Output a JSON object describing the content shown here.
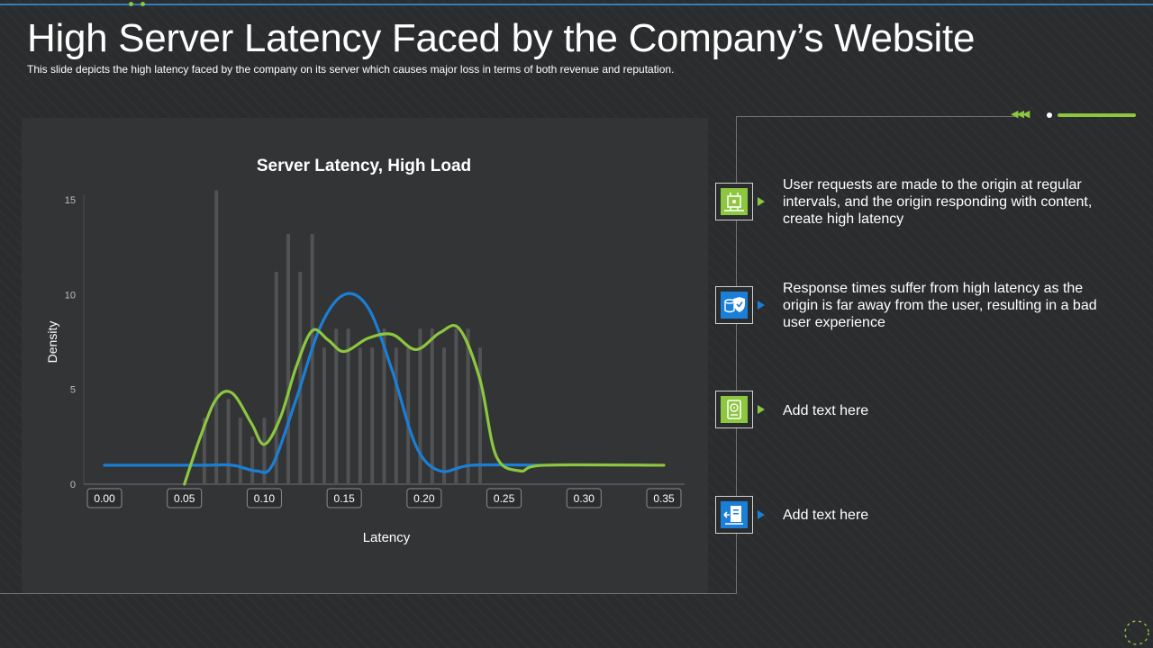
{
  "slide": {
    "title": "High Server Latency Faced by the Company’s Website",
    "subtitle": "This slide depicts the high latency faced by the company on its server  which causes major loss in terms of both revenue  and reputation."
  },
  "colors": {
    "green": "#8dc63f",
    "blue": "#1a7fd6",
    "bars": "#505254",
    "background": "#2b2c2e"
  },
  "chart_data": {
    "type": "histogram-with-density-lines",
    "title": "Server Latency, High  Load",
    "xlabel": "Latency",
    "ylabel": "Density",
    "xlim": [
      0,
      0.35
    ],
    "ylim": [
      0,
      15
    ],
    "x_ticks": [
      "0.00",
      "0.05",
      "0.10",
      "0.15",
      "0.20",
      "0.25",
      "0.30",
      "0.35"
    ],
    "y_ticks": [
      "0",
      "5",
      "10",
      "15"
    ],
    "grid": false,
    "bars": {
      "x": [
        0.0625,
        0.07,
        0.0775,
        0.085,
        0.0925,
        0.1,
        0.1075,
        0.115,
        0.1225,
        0.13,
        0.1375,
        0.145,
        0.1525,
        0.16,
        0.1675,
        0.175,
        0.1825,
        0.19,
        0.1975,
        0.205,
        0.2125,
        0.22,
        0.2275,
        0.235
      ],
      "values": [
        3.5,
        15.5,
        4.5,
        3.5,
        2.5,
        3.5,
        11.2,
        13.2,
        11.2,
        13.2,
        7.2,
        8.2,
        8.2,
        7.2,
        7.2,
        8.2,
        7.2,
        7.2,
        8.2,
        8.2,
        7.2,
        8.2,
        8.2,
        7.2
      ]
    },
    "series": [
      {
        "color": "#1a7fd6",
        "x": [
          0.0,
          0.06,
          0.08,
          0.095,
          0.105,
          0.12,
          0.135,
          0.15,
          0.165,
          0.18,
          0.195,
          0.21,
          0.23,
          0.275
        ],
        "values": [
          1.0,
          1.0,
          1.0,
          0.7,
          1.0,
          4.5,
          8.3,
          10.0,
          9.3,
          6.0,
          2.0,
          0.7,
          1.0,
          1.0
        ]
      },
      {
        "color": "#8dc63f",
        "x": [
          0.05,
          0.06,
          0.07,
          0.08,
          0.092,
          0.1,
          0.11,
          0.12,
          0.13,
          0.14,
          0.15,
          0.165,
          0.18,
          0.195,
          0.21,
          0.222,
          0.235,
          0.245,
          0.26,
          0.275,
          0.35
        ],
        "values": [
          0.0,
          2.5,
          4.5,
          4.8,
          3.2,
          2.1,
          3.5,
          6.2,
          8.1,
          7.6,
          7.0,
          7.7,
          7.9,
          7.1,
          8.0,
          8.2,
          5.5,
          1.5,
          0.7,
          1.0,
          1.0
        ]
      }
    ]
  },
  "items": [
    {
      "icon": "server-icon",
      "text": "User requests are made to the origin at regular intervals,  and the origin responding with content, create high latency"
    },
    {
      "icon": "shield-database-icon",
      "text": "Response times suffer from high latency as the origin is far away from the user, resulting in a bad user experience"
    },
    {
      "icon": "hard-drive-icon",
      "text": "Add text here"
    },
    {
      "icon": "file-transfer-icon",
      "text": "Add text here"
    }
  ]
}
